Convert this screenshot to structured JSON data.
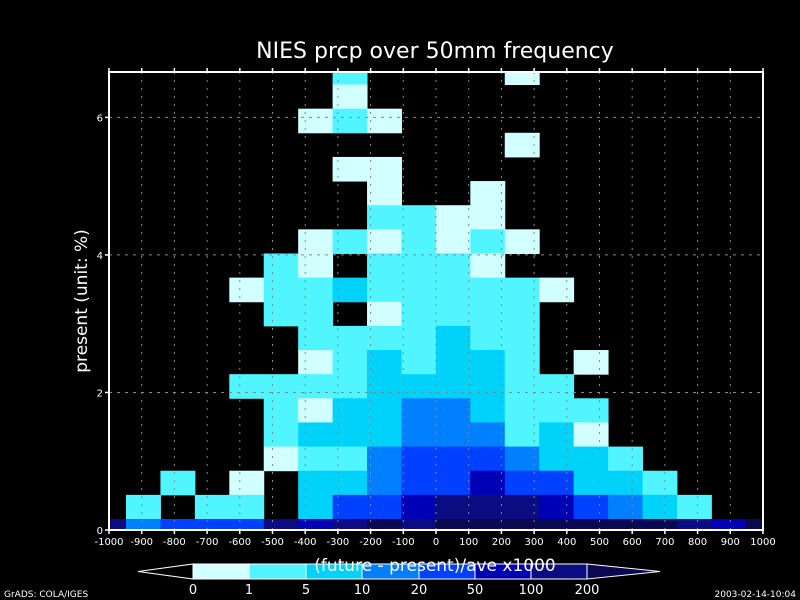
{
  "chart_data": {
    "type": "heatmap",
    "title": "NIES  prcp over 50mm  frequency",
    "xlabel": "(future - present)/ave  x1000",
    "ylabel": "present (unit: %)",
    "xlim": [
      -1000,
      1000
    ],
    "ylim": [
      0,
      6.66
    ],
    "grid": true,
    "x_ticks": [
      "-1000",
      "-900",
      "-800",
      "-700",
      "-600",
      "-500",
      "-400",
      "-300",
      "-200",
      "-100",
      "0",
      "100",
      "200",
      "300",
      "400",
      "500",
      "600",
      "700",
      "800",
      "900",
      "1000"
    ],
    "x_tick_values": [
      -1000,
      -900,
      -800,
      -700,
      -600,
      -500,
      -400,
      -300,
      -200,
      -100,
      0,
      100,
      200,
      300,
      400,
      500,
      600,
      700,
      800,
      900,
      1000
    ],
    "y_ticks": [
      "0",
      "2",
      "4",
      "6"
    ],
    "y_tick_values": [
      0,
      2,
      4,
      6
    ],
    "x_bin_start": -948,
    "x_bin_width": 105.3,
    "y_bin_start": 0.16,
    "y_bin_height": 0.351,
    "cell_class_note": "0=no data, 1..8 = colorbar class index",
    "cells_top_to_bottom": [
      [
        0,
        0,
        0,
        0,
        0,
        0,
        0,
        2,
        0,
        0,
        0,
        0,
        1,
        0,
        0,
        0,
        0,
        0,
        0,
        0
      ],
      [
        0,
        0,
        0,
        0,
        0,
        0,
        0,
        1,
        0,
        0,
        0,
        0,
        0,
        0,
        0,
        0,
        0,
        0,
        0,
        0
      ],
      [
        0,
        0,
        0,
        0,
        0,
        0,
        1,
        2,
        1,
        0,
        0,
        0,
        0,
        0,
        0,
        0,
        0,
        0,
        0,
        0
      ],
      [
        0,
        0,
        0,
        0,
        0,
        0,
        0,
        0,
        0,
        0,
        0,
        0,
        1,
        0,
        0,
        0,
        0,
        0,
        0,
        0
      ],
      [
        0,
        0,
        0,
        0,
        0,
        0,
        0,
        1,
        1,
        0,
        0,
        0,
        0,
        0,
        0,
        0,
        0,
        0,
        0,
        0
      ],
      [
        0,
        0,
        0,
        0,
        0,
        0,
        0,
        0,
        1,
        0,
        0,
        1,
        0,
        0,
        0,
        0,
        0,
        0,
        0,
        0
      ],
      [
        0,
        0,
        0,
        0,
        0,
        0,
        0,
        0,
        2,
        2,
        1,
        1,
        0,
        0,
        0,
        0,
        0,
        0,
        0,
        0
      ],
      [
        0,
        0,
        0,
        0,
        0,
        0,
        1,
        2,
        1,
        2,
        1,
        2,
        1,
        0,
        0,
        0,
        0,
        0,
        0,
        0
      ],
      [
        0,
        0,
        0,
        0,
        0,
        2,
        1,
        0,
        2,
        2,
        2,
        1,
        0,
        0,
        0,
        0,
        0,
        0,
        0,
        0
      ],
      [
        0,
        0,
        0,
        0,
        1,
        2,
        2,
        3,
        2,
        2,
        2,
        2,
        2,
        1,
        0,
        0,
        0,
        0,
        0,
        0
      ],
      [
        0,
        0,
        0,
        0,
        0,
        2,
        2,
        0,
        1,
        2,
        2,
        2,
        2,
        0,
        0,
        0,
        0,
        0,
        0,
        0
      ],
      [
        0,
        0,
        0,
        0,
        0,
        0,
        2,
        2,
        2,
        2,
        3,
        2,
        2,
        0,
        0,
        0,
        0,
        0,
        0,
        0
      ],
      [
        0,
        0,
        0,
        0,
        0,
        0,
        1,
        2,
        3,
        2,
        3,
        3,
        2,
        0,
        1,
        0,
        0,
        0,
        0,
        0
      ],
      [
        0,
        0,
        0,
        0,
        2,
        2,
        2,
        2,
        3,
        3,
        3,
        3,
        2,
        2,
        0,
        0,
        0,
        0,
        0,
        0
      ],
      [
        0,
        0,
        0,
        0,
        0,
        2,
        1,
        3,
        3,
        4,
        4,
        3,
        2,
        2,
        2,
        0,
        0,
        0,
        0,
        0
      ],
      [
        0,
        0,
        0,
        0,
        0,
        2,
        3,
        3,
        3,
        4,
        4,
        4,
        2,
        3,
        1,
        0,
        0,
        0,
        0,
        0
      ],
      [
        0,
        0,
        0,
        0,
        0,
        1,
        2,
        2,
        4,
        5,
        5,
        5,
        4,
        3,
        3,
        2,
        0,
        0,
        0,
        0
      ],
      [
        0,
        0,
        2,
        0,
        1,
        0,
        3,
        3,
        4,
        5,
        5,
        6,
        5,
        5,
        3,
        3,
        2,
        0,
        0,
        0
      ],
      [
        0,
        2,
        0,
        2,
        2,
        0,
        3,
        5,
        5,
        6,
        7,
        7,
        7,
        6,
        5,
        4,
        3,
        2,
        0,
        0
      ],
      [
        7,
        4,
        5,
        5,
        5,
        7,
        6,
        7,
        8,
        7,
        8,
        8,
        8,
        8,
        8,
        8,
        8,
        7,
        6,
        8
      ]
    ],
    "colorbar": {
      "labels": [
        "0",
        "1",
        "5",
        "10",
        "20",
        "50",
        "100",
        "200"
      ],
      "colors": [
        "#000000",
        "#d2ffff",
        "#50f5ff",
        "#00d2fa",
        "#0080ff",
        "#0040ff",
        "#0000b4",
        "#0c0c82",
        "#0a0850"
      ]
    }
  },
  "footer": {
    "left": "GrADS: COLA/IGES",
    "right": "2003-02-14-10:04"
  }
}
